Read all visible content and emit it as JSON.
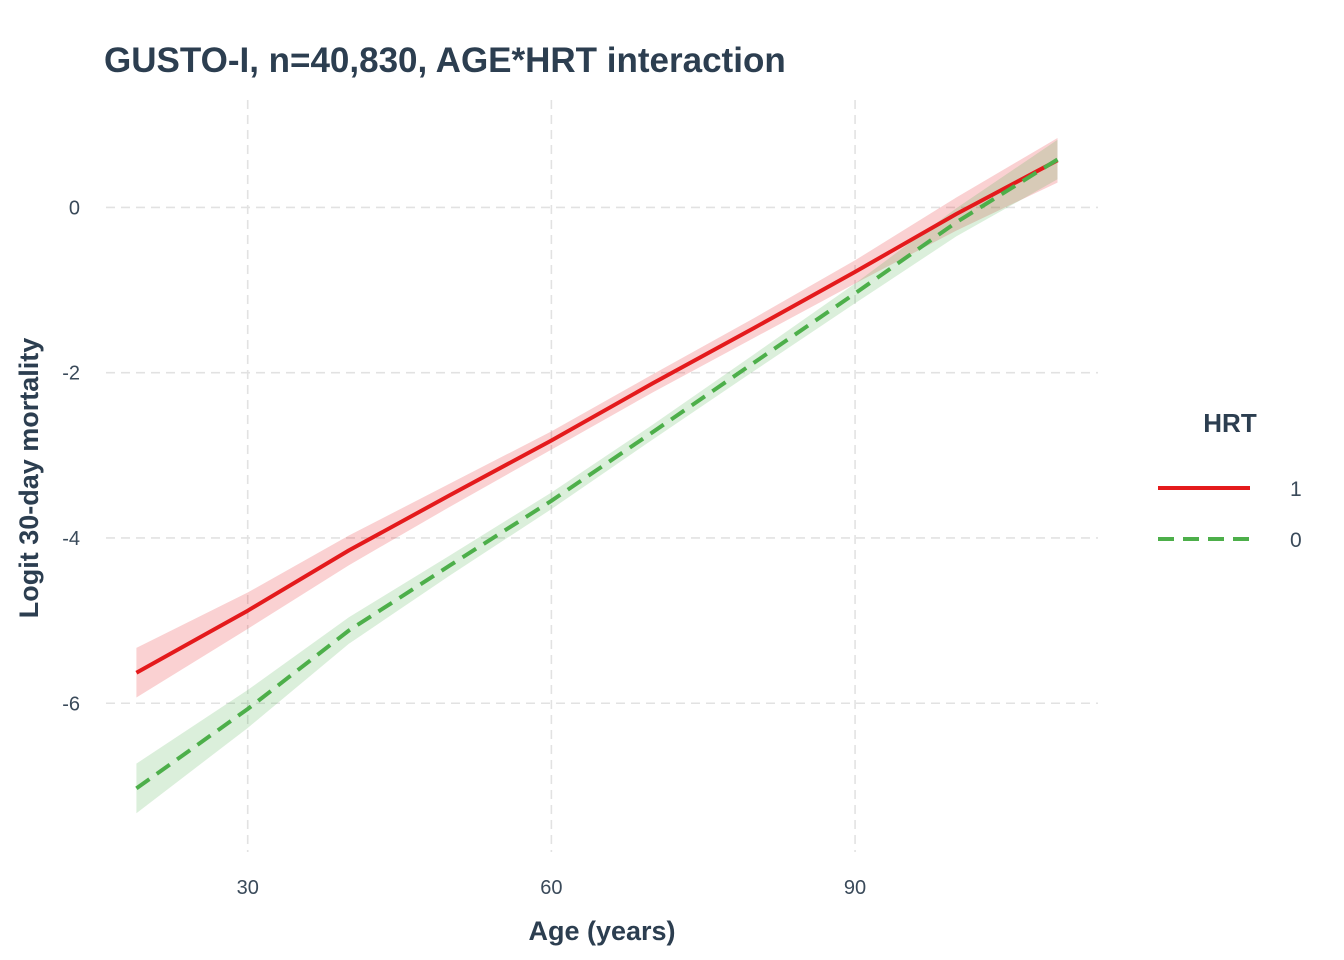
{
  "chart_data": {
    "type": "line",
    "title": "GUSTO-I, n=40,830, AGE*HRT interaction",
    "xlabel": "Age (years)",
    "ylabel": "Logit 30-day mortality",
    "xlim": [
      16,
      114
    ],
    "ylim": [
      -7.8,
      1.3
    ],
    "x_ticks": [
      30,
      60,
      90
    ],
    "y_ticks": [
      0,
      -2,
      -4,
      -6
    ],
    "grid": true,
    "legend": {
      "title": "HRT",
      "position": "right"
    },
    "series": [
      {
        "name": "1",
        "color": "#e41a1c",
        "line_style": "solid",
        "x": [
          19,
          30,
          40,
          50,
          60,
          70,
          80,
          90,
          100,
          110
        ],
        "y": [
          -5.63,
          -4.88,
          -4.15,
          -3.48,
          -2.82,
          -2.13,
          -1.46,
          -0.78,
          -0.08,
          0.57
        ],
        "lower": [
          -5.93,
          -5.1,
          -4.33,
          -3.62,
          -2.93,
          -2.24,
          -1.58,
          -0.92,
          -0.28,
          0.3
        ],
        "upper": [
          -5.33,
          -4.66,
          -3.97,
          -3.34,
          -2.71,
          -2.02,
          -1.34,
          -0.64,
          0.12,
          0.84
        ]
      },
      {
        "name": "0",
        "color": "#4daf4a",
        "line_style": "dashed",
        "x": [
          19,
          30,
          40,
          50,
          60,
          70,
          80,
          90,
          100,
          110
        ],
        "y": [
          -7.03,
          -6.07,
          -5.12,
          -4.33,
          -3.55,
          -2.72,
          -1.88,
          -1.04,
          -0.18,
          0.58
        ],
        "lower": [
          -7.33,
          -6.3,
          -5.28,
          -4.45,
          -3.65,
          -2.81,
          -1.98,
          -1.16,
          -0.35,
          0.34
        ],
        "upper": [
          -6.73,
          -5.84,
          -4.96,
          -4.21,
          -3.45,
          -2.63,
          -1.78,
          -0.92,
          -0.01,
          0.82
        ]
      }
    ]
  }
}
